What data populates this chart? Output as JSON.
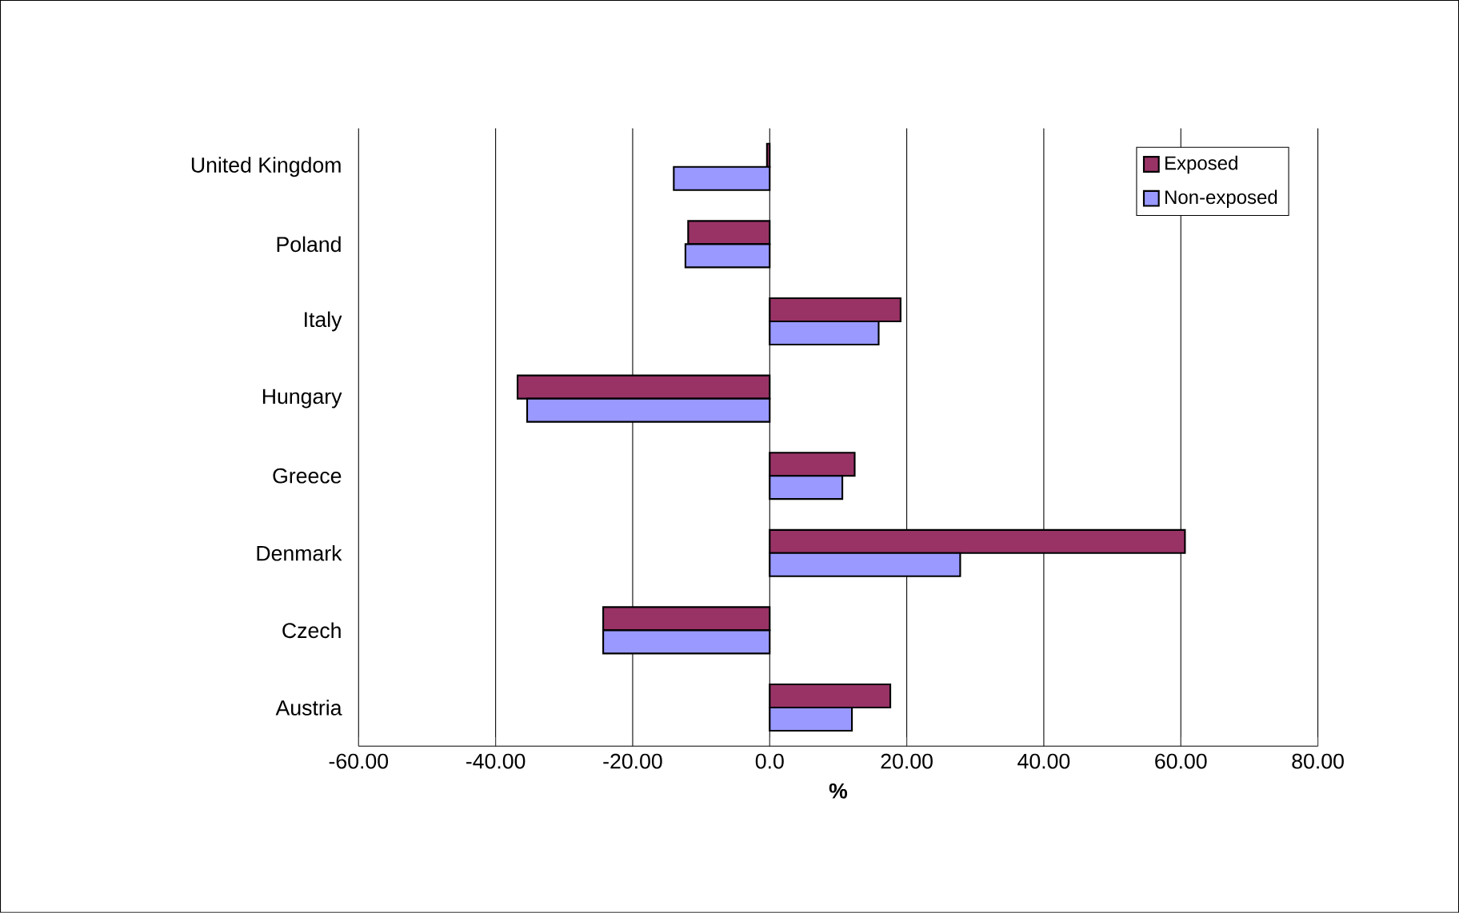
{
  "chart_data": {
    "type": "bar",
    "orientation": "horizontal",
    "xlabel": "%",
    "categories": [
      "United Kingdom",
      "Poland",
      "Italy",
      "Hungary",
      "Greece",
      "Denmark",
      "Czech",
      "Austria"
    ],
    "series": [
      {
        "name": "Exposed",
        "color": "#993366",
        "values": [
          -0.4,
          -11.9,
          19.1,
          -36.8,
          12.4,
          60.6,
          -24.3,
          17.6
        ]
      },
      {
        "name": "Non-exposed",
        "color": "#9999ff",
        "values": [
          -14.0,
          -12.3,
          15.9,
          -35.4,
          10.6,
          27.8,
          -24.3,
          12.0
        ]
      }
    ],
    "xlim": [
      -60,
      80
    ],
    "xticks": [
      {
        "value": -60,
        "label": "-60.00"
      },
      {
        "value": -40,
        "label": "-40.00"
      },
      {
        "value": -20,
        "label": "-20.00"
      },
      {
        "value": 0,
        "label": "0.0"
      },
      {
        "value": 20,
        "label": "20.00"
      },
      {
        "value": 40,
        "label": "40.00"
      },
      {
        "value": 60,
        "label": "60.00"
      },
      {
        "value": 80,
        "label": "80.00"
      }
    ],
    "grid": "x",
    "legend": "top right"
  }
}
